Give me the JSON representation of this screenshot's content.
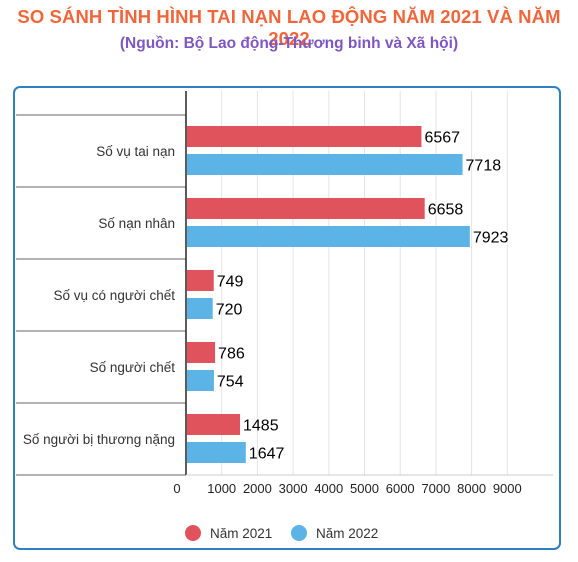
{
  "header": {
    "title": "SO SÁNH TÌNH HÌNH TAI NẠN LAO ĐỘNG NĂM 2021 VÀ NĂM 2022",
    "subtitle": "(Nguồn:  Bộ Lao động-Thương binh và Xã hội)"
  },
  "colors": {
    "title": "#f0663a",
    "subtitle": "#7e57c2",
    "frame": "#2f7fc1",
    "series_2021": "#e0535c",
    "series_2022": "#5bb3e6"
  },
  "chart_data": {
    "type": "bar",
    "orientation": "horizontal",
    "title": "SO SÁNH TÌNH HÌNH TAI NẠN LAO ĐỘNG NĂM 2021 VÀ NĂM 2022",
    "subtitle": "(Nguồn:  Bộ Lao động-Thương binh và Xã hội)",
    "categories": [
      "Số vụ tai nạn",
      "Số nạn nhân",
      "Số vụ có người chết",
      "Số người chết",
      "Số người bị thương nặng"
    ],
    "series": [
      {
        "name": "Năm 2021",
        "color": "#e0535c",
        "values": [
          6567,
          6658,
          749,
          786,
          1485
        ]
      },
      {
        "name": "Năm 2022",
        "color": "#5bb3e6",
        "values": [
          7718,
          7923,
          720,
          754,
          1647
        ]
      }
    ],
    "xlim": [
      0,
      9000
    ],
    "xticks": [
      0,
      1000,
      2000,
      3000,
      4000,
      5000,
      6000,
      7000,
      8000,
      9000
    ],
    "xlabel": "",
    "ylabel": "",
    "grid": true,
    "data_labels": true,
    "legend_position": "bottom"
  }
}
